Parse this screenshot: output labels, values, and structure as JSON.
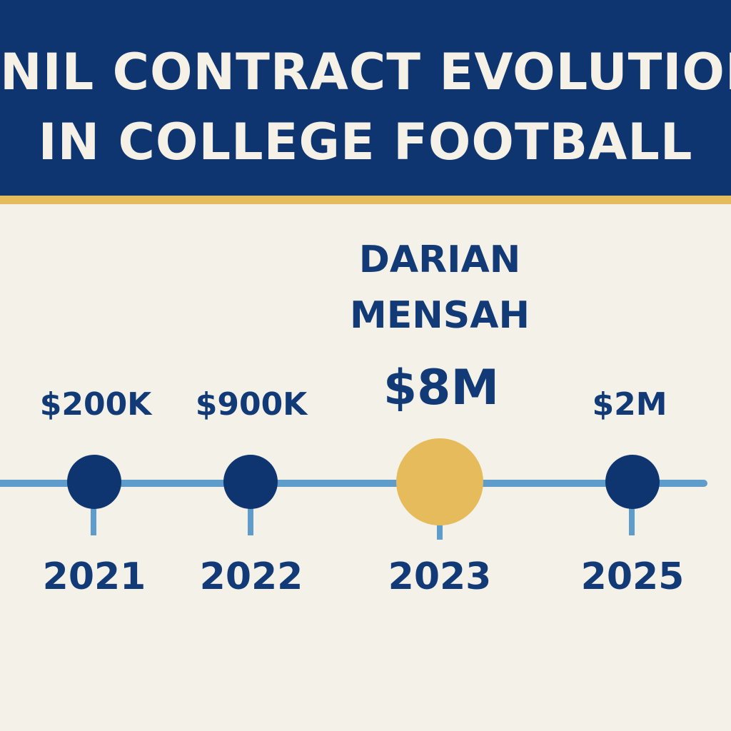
{
  "header": {
    "title_line_1": "NIL CONTRACT EVOLUTION",
    "title_line_2": "IN COLLEGE FOOTBALL"
  },
  "timeline": {
    "points": [
      {
        "year": "2021",
        "value": "$200K",
        "highlight": false
      },
      {
        "year": "2022",
        "value": "$900K",
        "highlight": false
      },
      {
        "year": "2023",
        "value": "$8M",
        "highlight": true,
        "name_line_1": "DARIAN",
        "name_line_2": "MENSAH"
      },
      {
        "year": "2025",
        "value": "$2M",
        "highlight": false
      }
    ]
  },
  "colors": {
    "header_bg": "#0f3570",
    "accent_gold": "#e6bb5c",
    "navy": "#123a76",
    "line_blue": "#5e9ccc",
    "background": "#f4f1e9"
  }
}
